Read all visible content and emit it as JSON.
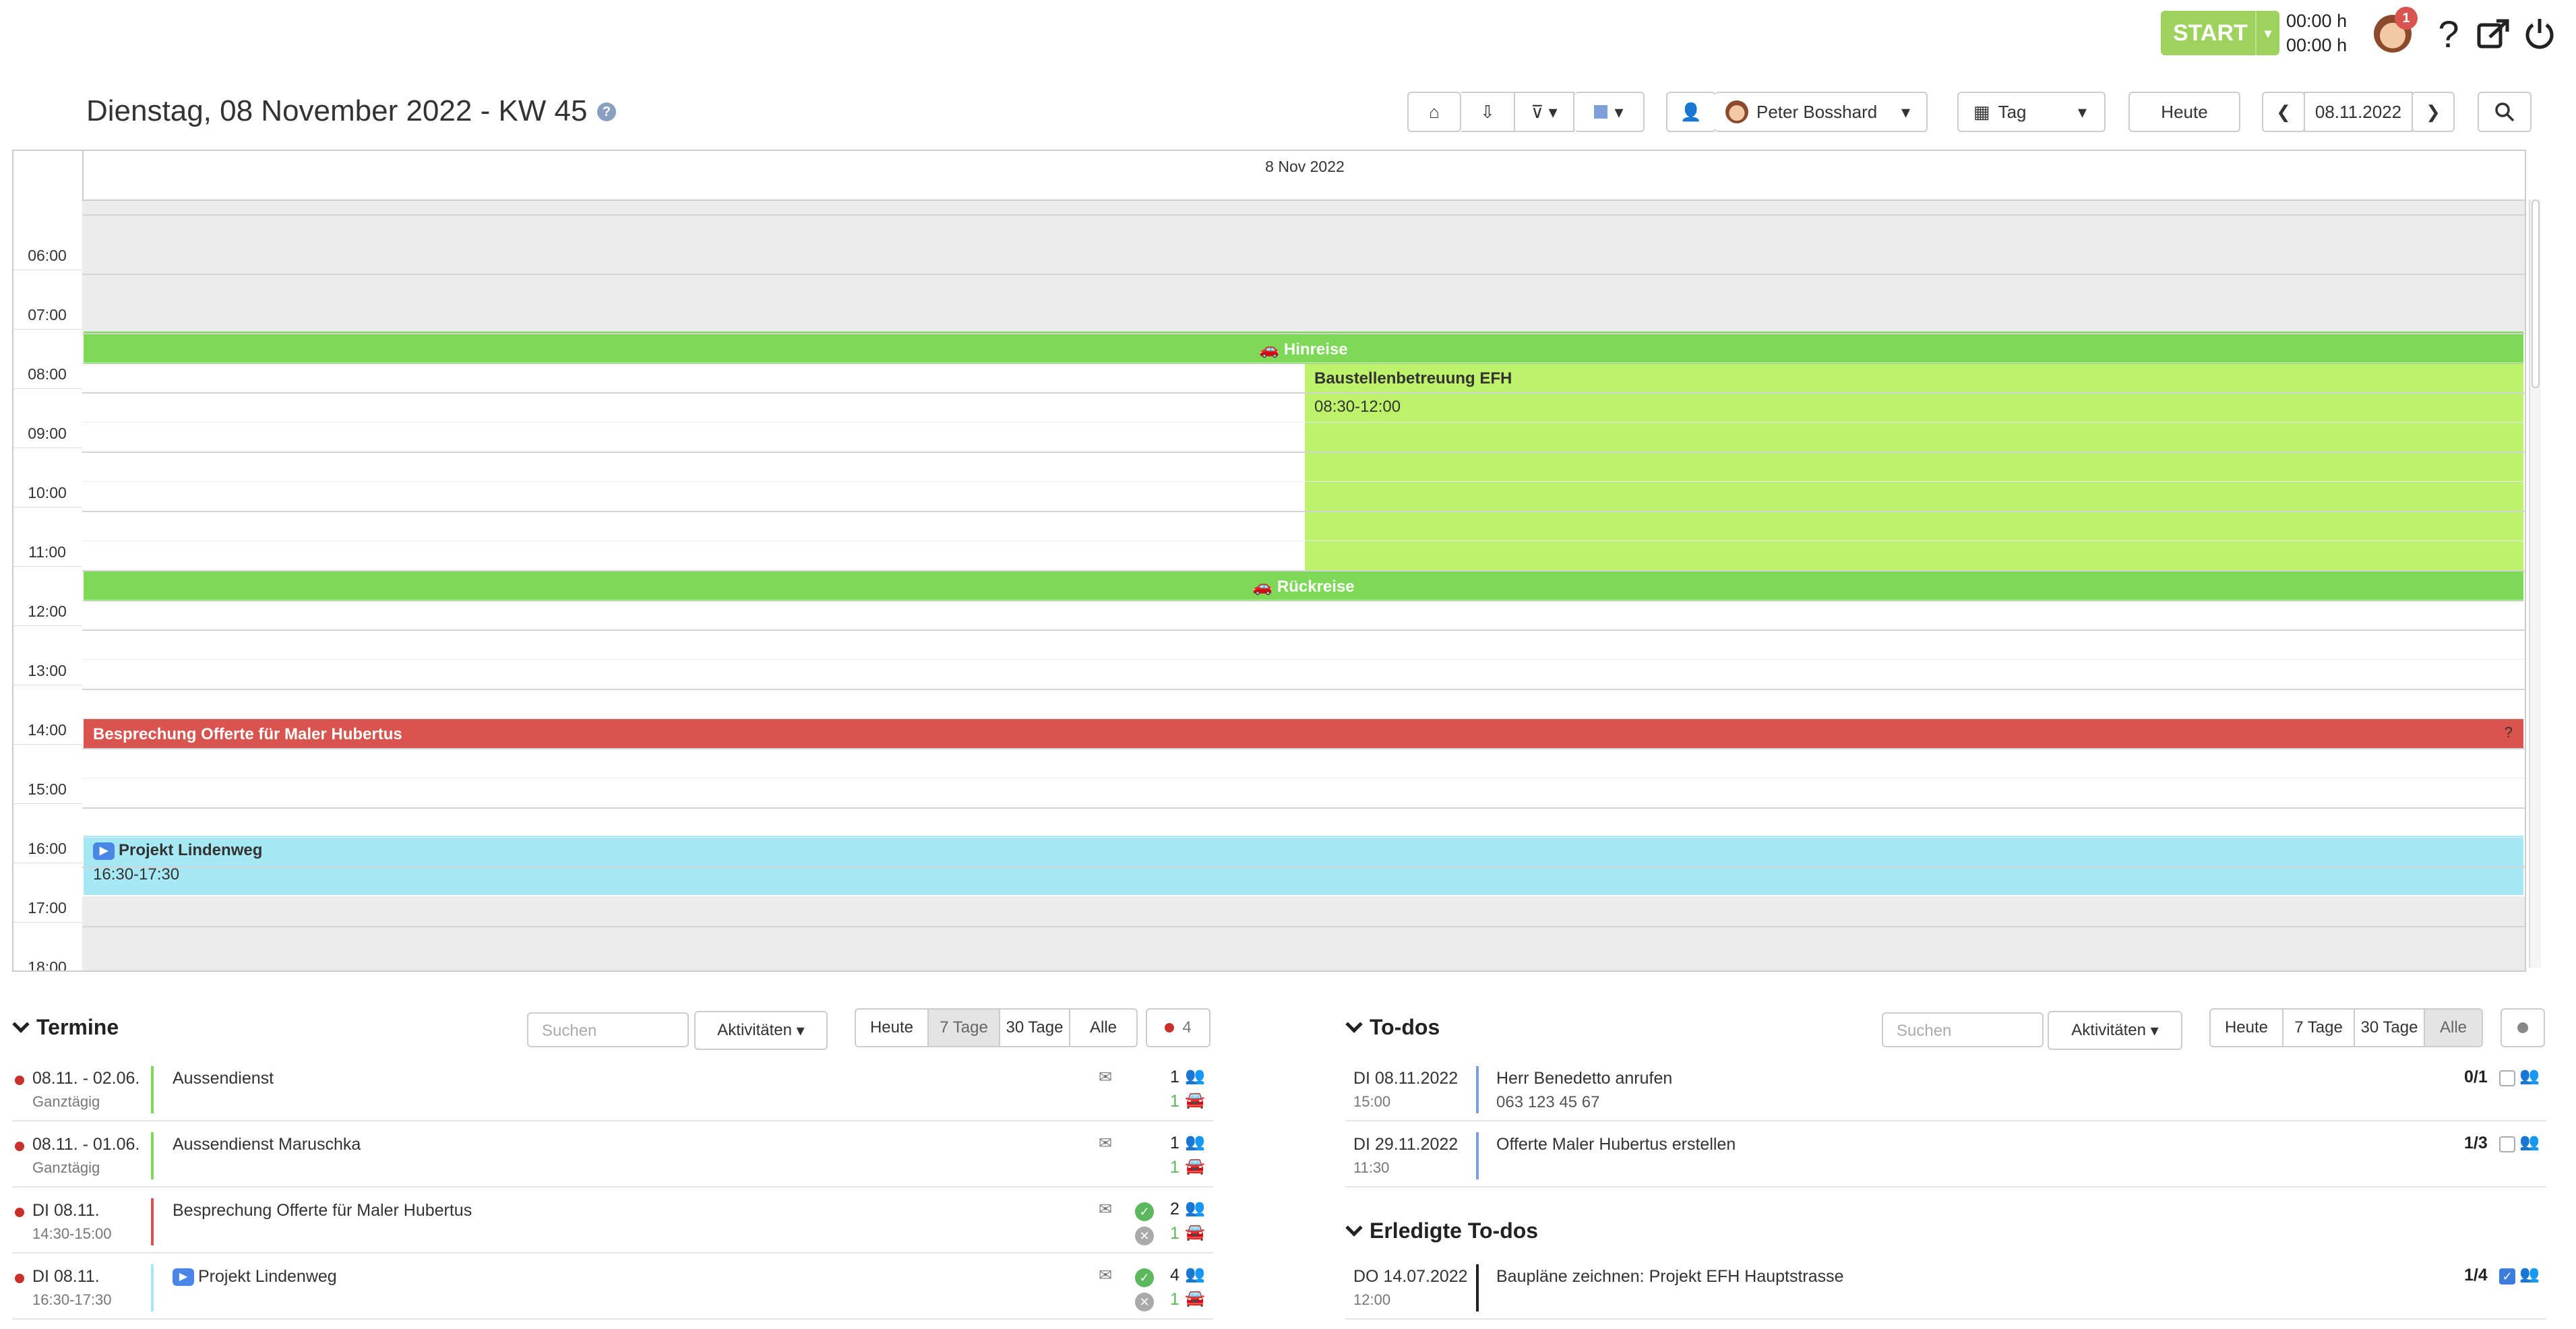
{
  "topbar": {
    "start_label": "START",
    "timer1": "00:00 h",
    "timer2": "00:00 h",
    "notification_count": "1",
    "help": "?"
  },
  "header": {
    "title": "Dienstag, 08 November 2022 - KW 45",
    "help_icon": "?",
    "user_name": "Peter Bosshard",
    "view_label": "Tag",
    "today_label": "Heute",
    "date_value": "08.11.2022"
  },
  "calendar": {
    "day_header": "8 Nov 2022",
    "hours": [
      "06:00",
      "07:00",
      "08:00",
      "09:00",
      "10:00",
      "11:00",
      "12:00",
      "13:00",
      "14:00",
      "15:00",
      "16:00",
      "17:00",
      "18:00"
    ],
    "events": {
      "hinreise": "Hinreise",
      "baustelle_title": "Baustellenbetreuung EFH",
      "baustelle_time": "08:30-12:00",
      "rueckreise": "Rückreise",
      "besprechung": "Besprechung Offerte für Maler Hubertus",
      "besprechung_q": "?",
      "projekt_title": "Projekt Lindenweg",
      "projekt_time": "16:30-17:30"
    },
    "colors": {
      "travel": "#7ed957",
      "site": "#bef26b",
      "meeting": "#d9534f",
      "project": "#a6e9f4"
    }
  },
  "termine": {
    "title": "Termine",
    "search_placeholder": "Suchen",
    "activities_label": "Aktivitäten",
    "filters": [
      "Heute",
      "7 Tage",
      "30 Tage",
      "Alle"
    ],
    "active_filter": "7 Tage",
    "count": "4",
    "rows": [
      {
        "date": "08.11. - 02.06.",
        "sub": "Ganztägig",
        "title": "Aussendienst",
        "count1": "1",
        "count2": "1",
        "bar": "#7ed957"
      },
      {
        "date": "08.11. - 01.06.",
        "sub": "Ganztägig",
        "title": "Aussendienst Maruschka",
        "count1": "1",
        "count2": "1",
        "bar": "#7ed957"
      },
      {
        "date": "DI 08.11.",
        "sub": "14:30-15:00",
        "title": "Besprechung Offerte für Maler Hubertus",
        "count1": "2",
        "count2": "1",
        "bar": "#d9534f"
      },
      {
        "date": "DI 08.11.",
        "sub": "16:30-17:30",
        "title": "Projekt Lindenweg",
        "count1": "4",
        "count2": "1",
        "bar": "#a6e9f4"
      }
    ]
  },
  "todos": {
    "title": "To-dos",
    "search_placeholder": "Suchen",
    "activities_label": "Aktivitäten",
    "filters": [
      "Heute",
      "7 Tage",
      "30 Tage",
      "Alle"
    ],
    "active_filter": "Alle",
    "rows": [
      {
        "date": "DI 08.11.2022",
        "sub": "15:00",
        "title": "Herr Benedetto anrufen",
        "title2": "063 123 45 67",
        "count": "0/1"
      },
      {
        "date": "DI 29.11.2022",
        "sub": "11:30",
        "title": "Offerte Maler Hubertus erstellen",
        "count": "1/3"
      }
    ],
    "done_title": "Erledigte To-dos",
    "done_rows": [
      {
        "date": "DO 14.07.2022",
        "sub": "12:00",
        "title": "Baupläne zeichnen: Projekt EFH Hauptstrasse",
        "count": "1/4"
      }
    ]
  }
}
